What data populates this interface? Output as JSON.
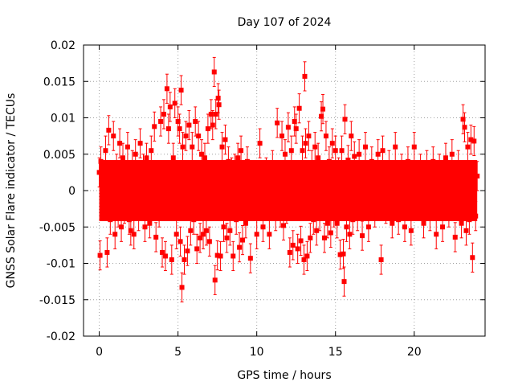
{
  "chart_data": {
    "type": "scatter",
    "title": "Day 107 of 2024",
    "xlabel": "GPS time / hours",
    "ylabel": "GNSS Solar Flare indicator / TECUs",
    "xlim": [
      -1,
      24.5
    ],
    "ylim": [
      -0.02,
      0.02
    ],
    "xticks": [
      0,
      5,
      10,
      15,
      20
    ],
    "xtick_labels": [
      "0",
      "5",
      "10",
      "15",
      "20"
    ],
    "yticks": [
      -0.02,
      -0.015,
      -0.01,
      -0.005,
      0,
      0.005,
      0.01,
      0.015,
      0.02
    ],
    "ytick_labels": [
      "-0.02",
      "-0.015",
      "-0.01",
      "-0.005",
      "0",
      "0.005",
      "0.01",
      "0.015",
      "0.02"
    ],
    "grid": true,
    "series": [
      {
        "color": "#ff0000",
        "marker": "square",
        "error_bars": true,
        "typical_error": 0.002,
        "points": [
          [
            0.0,
            0.0025
          ],
          [
            0.05,
            -0.0089
          ],
          [
            0.1,
            0.004
          ],
          [
            0.2,
            -0.002
          ],
          [
            0.3,
            0.001
          ],
          [
            0.4,
            0.0055
          ],
          [
            0.5,
            -0.0085
          ],
          [
            0.6,
            0.0083
          ],
          [
            0.7,
            -0.004
          ],
          [
            0.8,
            0.002
          ],
          [
            0.9,
            0.0075
          ],
          [
            1.0,
            -0.006
          ],
          [
            1.1,
            0.003
          ],
          [
            1.2,
            -0.003
          ],
          [
            1.3,
            0.0065
          ],
          [
            1.4,
            -0.005
          ],
          [
            1.5,
            0.0045
          ],
          [
            1.6,
            -0.0025
          ],
          [
            1.7,
            0.001
          ],
          [
            1.8,
            0.006
          ],
          [
            1.9,
            -0.004
          ],
          [
            2.0,
            -0.0055
          ],
          [
            2.1,
            0.0035
          ],
          [
            2.2,
            -0.006
          ],
          [
            2.3,
            0.005
          ],
          [
            2.4,
            0.0015
          ],
          [
            2.5,
            -0.0035
          ],
          [
            2.6,
            0.0065
          ],
          [
            2.7,
            -0.002
          ],
          [
            2.8,
            0.003
          ],
          [
            2.9,
            -0.005
          ],
          [
            3.0,
            0.0045
          ],
          [
            3.1,
            0.0005
          ],
          [
            3.2,
            -0.0045
          ],
          [
            3.3,
            0.0055
          ],
          [
            3.4,
            -0.0015
          ],
          [
            3.5,
            0.0088
          ],
          [
            3.6,
            -0.0064
          ],
          [
            3.7,
            0.002
          ],
          [
            3.8,
            -0.003
          ],
          [
            3.9,
            0.0095
          ],
          [
            4.0,
            -0.0085
          ],
          [
            4.1,
            0.0105
          ],
          [
            4.2,
            -0.009
          ],
          [
            4.3,
            0.014
          ],
          [
            4.4,
            0.0085
          ],
          [
            4.5,
            0.0115
          ],
          [
            4.6,
            -0.0095
          ],
          [
            4.7,
            0.0045
          ],
          [
            4.8,
            0.012
          ],
          [
            4.9,
            -0.006
          ],
          [
            5.0,
            0.0095
          ],
          [
            5.1,
            0.0085
          ],
          [
            5.15,
            -0.007
          ],
          [
            5.2,
            0.0138
          ],
          [
            5.25,
            -0.0133
          ],
          [
            5.3,
            0.006
          ],
          [
            5.4,
            -0.0095
          ],
          [
            5.5,
            0.0075
          ],
          [
            5.6,
            -0.0083
          ],
          [
            5.7,
            0.009
          ],
          [
            5.8,
            -0.0055
          ],
          [
            5.9,
            0.006
          ],
          [
            6.0,
            -0.004
          ],
          [
            6.1,
            0.0095
          ],
          [
            6.2,
            -0.008
          ],
          [
            6.3,
            0.0075
          ],
          [
            6.4,
            -0.0065
          ],
          [
            6.5,
            0.005
          ],
          [
            6.6,
            -0.006
          ],
          [
            6.7,
            0.0045
          ],
          [
            6.8,
            -0.0055
          ],
          [
            6.9,
            0.0085
          ],
          [
            7.0,
            -0.007
          ],
          [
            7.1,
            0.0105
          ],
          [
            7.2,
            0.009
          ],
          [
            7.3,
            0.0163
          ],
          [
            7.35,
            -0.0123
          ],
          [
            7.4,
            0.0105
          ],
          [
            7.5,
            -0.0089
          ],
          [
            7.55,
            0.0127
          ],
          [
            7.6,
            0.0118
          ],
          [
            7.7,
            -0.009
          ],
          [
            7.8,
            0.006
          ],
          [
            7.9,
            -0.005
          ],
          [
            8.0,
            0.007
          ],
          [
            8.1,
            -0.0065
          ],
          [
            8.2,
            0.004
          ],
          [
            8.3,
            -0.0055
          ],
          [
            8.4,
            0.0025
          ],
          [
            8.5,
            -0.009
          ],
          [
            8.6,
            0.003
          ],
          [
            8.7,
            -0.004
          ],
          [
            8.8,
            0.0045
          ],
          [
            8.9,
            -0.0078
          ],
          [
            9.0,
            0.0055
          ],
          [
            9.1,
            -0.0068
          ],
          [
            9.2,
            0.002
          ],
          [
            9.3,
            -0.0045
          ],
          [
            9.4,
            0.004
          ],
          [
            9.6,
            -0.0093
          ],
          [
            9.8,
            0.0015
          ],
          [
            10.0,
            -0.006
          ],
          [
            10.2,
            0.0065
          ],
          [
            10.4,
            -0.005
          ],
          [
            10.6,
            0.0025
          ],
          [
            10.8,
            -0.006
          ],
          [
            11.0,
            0.0035
          ],
          [
            11.2,
            -0.0035
          ],
          [
            11.3,
            0.0093
          ],
          [
            11.5,
            -0.003
          ],
          [
            11.6,
            0.0075
          ],
          [
            11.7,
            -0.0048
          ],
          [
            11.8,
            0.005
          ],
          [
            11.9,
            -0.0025
          ],
          [
            12.0,
            0.0087
          ],
          [
            12.1,
            -0.0085
          ],
          [
            12.2,
            0.0055
          ],
          [
            12.3,
            -0.0075
          ],
          [
            12.4,
            0.0095
          ],
          [
            12.5,
            0.0085
          ],
          [
            12.6,
            -0.008
          ],
          [
            12.7,
            0.0113
          ],
          [
            12.8,
            -0.0069
          ],
          [
            12.9,
            0.0055
          ],
          [
            13.0,
            -0.0095
          ],
          [
            13.05,
            0.0157
          ],
          [
            13.1,
            0.0065
          ],
          [
            13.2,
            -0.009
          ],
          [
            13.3,
            0.0075
          ],
          [
            13.4,
            -0.0065
          ],
          [
            13.5,
            0.0035
          ],
          [
            13.6,
            -0.004
          ],
          [
            13.7,
            0.006
          ],
          [
            13.8,
            -0.0055
          ],
          [
            13.9,
            0.0045
          ],
          [
            14.0,
            -0.0035
          ],
          [
            14.1,
            0.0102
          ],
          [
            14.2,
            0.0112
          ],
          [
            14.3,
            -0.0065
          ],
          [
            14.4,
            0.0075
          ],
          [
            14.5,
            -0.0045
          ],
          [
            14.6,
            0.004
          ],
          [
            14.7,
            -0.0058
          ],
          [
            14.8,
            0.0065
          ],
          [
            14.9,
            -0.003
          ],
          [
            15.0,
            0.0055
          ],
          [
            15.1,
            -0.0045
          ],
          [
            15.2,
            0.0025
          ],
          [
            15.3,
            -0.0088
          ],
          [
            15.4,
            0.0055
          ],
          [
            15.5,
            -0.0087
          ],
          [
            15.55,
            -0.0125
          ],
          [
            15.6,
            0.0098
          ],
          [
            15.7,
            -0.005
          ],
          [
            15.8,
            0.0042
          ],
          [
            15.9,
            -0.006
          ],
          [
            16.0,
            0.0075
          ],
          [
            16.1,
            -0.004
          ],
          [
            16.2,
            0.0047
          ],
          [
            16.4,
            -0.0035
          ],
          [
            16.5,
            0.005
          ],
          [
            16.7,
            -0.0062
          ],
          [
            16.9,
            0.006
          ],
          [
            17.1,
            -0.005
          ],
          [
            17.3,
            0.004
          ],
          [
            17.5,
            -0.003
          ],
          [
            17.7,
            0.005
          ],
          [
            17.9,
            -0.0095
          ],
          [
            18.0,
            0.0055
          ],
          [
            18.2,
            -0.0025
          ],
          [
            18.4,
            0.0035
          ],
          [
            18.6,
            -0.0045
          ],
          [
            18.8,
            0.006
          ],
          [
            19.0,
            -0.004
          ],
          [
            19.2,
            0.003
          ],
          [
            19.4,
            -0.005
          ],
          [
            19.6,
            0.004
          ],
          [
            19.8,
            -0.0055
          ],
          [
            20.0,
            0.006
          ],
          [
            20.2,
            -0.002
          ],
          [
            20.4,
            0.003
          ],
          [
            20.6,
            -0.0045
          ],
          [
            20.8,
            0.0035
          ],
          [
            21.0,
            -0.0035
          ],
          [
            21.2,
            0.004
          ],
          [
            21.4,
            -0.006
          ],
          [
            21.6,
            0.003
          ],
          [
            21.8,
            -0.005
          ],
          [
            22.0,
            0.0045
          ],
          [
            22.2,
            -0.003
          ],
          [
            22.4,
            0.005
          ],
          [
            22.6,
            -0.0064
          ],
          [
            22.8,
            0.0035
          ],
          [
            23.0,
            -0.0045
          ],
          [
            23.1,
            0.0098
          ],
          [
            23.2,
            0.0087
          ],
          [
            23.3,
            -0.0055
          ],
          [
            23.4,
            0.006
          ],
          [
            23.5,
            -0.004
          ],
          [
            23.6,
            0.007
          ],
          [
            23.7,
            -0.0092
          ],
          [
            23.8,
            0.0068
          ],
          [
            23.9,
            -0.0035
          ],
          [
            24.0,
            0.002
          ]
        ]
      }
    ]
  }
}
